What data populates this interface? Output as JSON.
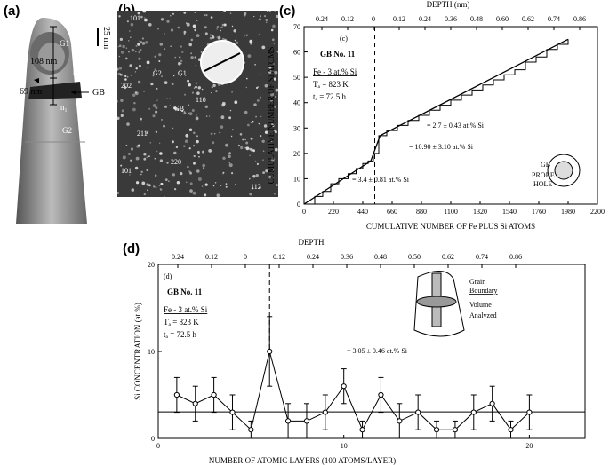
{
  "panel_a": {
    "letter": "(a)",
    "scale_bar": "25 nm",
    "labels": {
      "g1": "G1",
      "g2": "G2",
      "gb": "GB",
      "n1": "n₁",
      "n2": "n₂",
      "d108": "108 nm",
      "d69": "69 nm"
    }
  },
  "panel_b": {
    "letter": "(b)",
    "labels": [
      "101",
      "1",
      "G2",
      "202",
      "G1",
      "110",
      "GB",
      "211",
      "220",
      "101",
      "112"
    ],
    "circle_text": "G2  G1"
  },
  "panel_c": {
    "letter": "(c)",
    "inner_tag": "(c)",
    "gb_title": "GB No. 11",
    "alloy": "Fe - 3 at.% Si",
    "ta": "Tₐ = 823 K",
    "time": "tₐ = 72.5 h",
    "top_axis_title": "DEPTH (nm)",
    "ylabel": "CUMULATIVE NUMBER OF Si ATOMS",
    "xlabel": "CUMULATIVE NUMBER OF Fe PLUS Si ATOMS",
    "ann_g2": "= 2.7 ± 0.43 at.% Si",
    "ann_gb": "= 10.90 ± 3.10 at.% Si",
    "ann_g1": "= 3.4 ± 0.81 at.% Si",
    "legend_gb": "GB",
    "legend_probe": "PROBE",
    "legend_hole": "HOLE"
  },
  "panel_d": {
    "letter": "(d)",
    "inner_tag": "(d)",
    "gb_title": "GB No. 11",
    "alloy": "Fe - 3 at.% Si",
    "ta": "Tₐ = 823 K",
    "time": "tₐ = 72.5 h",
    "top_axis_title": "DEPTH",
    "ylabel": "Si CONCENTRATION (at.%)",
    "xlabel": "NUMBER OF ATOMIC LAYERS (100 ATOMS/LAYER)",
    "ann": "= 3.05 ± 0.46 at.% Si",
    "inset_grain": "Grain",
    "inset_boundary": "Boundary",
    "inset_volume": "Volume",
    "inset_analyzed": "Analyzed"
  },
  "chart_data": [
    {
      "type": "line",
      "panel": "c",
      "title": "",
      "xlabel": "CUMULATIVE NUMBER OF Fe PLUS Si ATOMS",
      "ylabel": "CUMULATIVE NUMBER OF Si ATOMS",
      "xlim": [
        0,
        2200
      ],
      "ylim": [
        0,
        70
      ],
      "xticks": [
        0,
        220,
        440,
        660,
        880,
        1100,
        1320,
        1540,
        1760,
        1980,
        2200
      ],
      "yticks": [
        0,
        10,
        20,
        30,
        40,
        50,
        60,
        70
      ],
      "top_ticks": [
        "0.24",
        "0.12",
        "0",
        "0.12",
        "0.24",
        "0.36",
        "0.48",
        "0.60",
        "0.62",
        "0.74",
        "0.86"
      ],
      "series": [
        {
          "x": [
            0,
            80,
            140,
            200,
            260,
            330,
            390,
            440,
            480,
            520,
            560,
            620,
            700,
            780,
            860,
            940,
            1020,
            1100,
            1180,
            1260,
            1340,
            1420,
            1500,
            1580,
            1660,
            1740,
            1820,
            1900,
            1980
          ],
          "y": [
            0,
            3,
            5,
            8,
            10,
            12,
            14,
            16,
            17,
            20,
            27,
            29,
            31,
            33,
            35,
            37,
            39,
            41,
            43,
            45,
            47,
            49,
            51,
            53,
            56,
            58,
            61,
            63,
            65
          ]
        }
      ]
    },
    {
      "type": "scatter",
      "panel": "d",
      "title": "",
      "xlabel": "NUMBER OF ATOMIC LAYERS (100 ATOMS/LAYER)",
      "ylabel": "Si CONCENTRATION (at.%)",
      "xlim": [
        0,
        23
      ],
      "ylim": [
        0,
        20
      ],
      "xticks": [
        0,
        10,
        20
      ],
      "yticks": [
        0,
        10,
        20
      ],
      "top_ticks": [
        "0.24",
        "0.12",
        "0",
        "0.12",
        "0.24",
        "0.36",
        "0.48",
        "0.50",
        "0.62",
        "0.74",
        "0.86"
      ],
      "series": [
        {
          "x": [
            1,
            2,
            3,
            4,
            5,
            6,
            7,
            8,
            9,
            10,
            11,
            12,
            13,
            14,
            15,
            16,
            17,
            18,
            19,
            20
          ],
          "y": [
            5,
            4,
            5,
            3,
            1,
            10,
            2,
            2,
            3,
            6,
            1,
            5,
            2,
            3,
            1,
            1,
            3,
            4,
            1,
            3
          ],
          "err": [
            2,
            2,
            2,
            2,
            1,
            4,
            2,
            2,
            2,
            2,
            1,
            2,
            2,
            2,
            1,
            1,
            2,
            2,
            1,
            2
          ]
        }
      ],
      "mean_line": 3.05
    }
  ]
}
